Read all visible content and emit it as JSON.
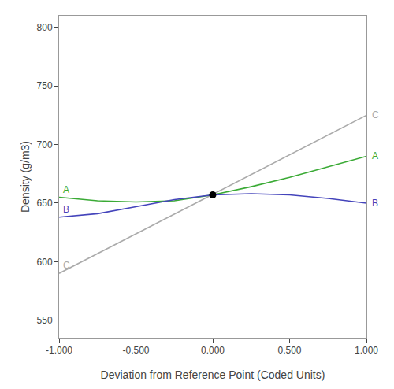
{
  "chart_data": {
    "type": "line",
    "xlabel": "Deviation from Reference Point (Coded Units)",
    "ylabel": "Density (g/m3)",
    "xlim": [
      -1.0,
      1.0
    ],
    "ylim": [
      535,
      810
    ],
    "xticks": [
      {
        "value": -1.0,
        "label": "-1.000"
      },
      {
        "value": -0.5,
        "label": "-0.500"
      },
      {
        "value": 0.0,
        "label": "0.000"
      },
      {
        "value": 0.5,
        "label": "0.500"
      },
      {
        "value": 1.0,
        "label": "1.000"
      }
    ],
    "yticks": [
      550,
      600,
      650,
      700,
      750,
      800
    ],
    "grid": false,
    "series": [
      {
        "name": "C",
        "color": "#aaaaaa",
        "x": [
          -1.0,
          1.0
        ],
        "values": [
          590,
          725
        ]
      },
      {
        "name": "A",
        "color": "#3aaa35",
        "x": [
          -1.0,
          -0.75,
          -0.5,
          -0.25,
          0.0,
          0.25,
          0.5,
          0.75,
          1.0
        ],
        "values": [
          655,
          652,
          651,
          652,
          657,
          664,
          672,
          681,
          690
        ]
      },
      {
        "name": "B",
        "color": "#4444bb",
        "x": [
          -1.0,
          -0.75,
          -0.5,
          -0.25,
          0.0,
          0.25,
          0.5,
          0.75,
          1.0
        ],
        "values": [
          638,
          641,
          647,
          653,
          657,
          658,
          657,
          654,
          650
        ]
      },
      {
        "type": "scatter",
        "marker": "circle",
        "color": "#000000",
        "x": [
          0.0
        ],
        "values": [
          657.0
        ]
      }
    ]
  }
}
